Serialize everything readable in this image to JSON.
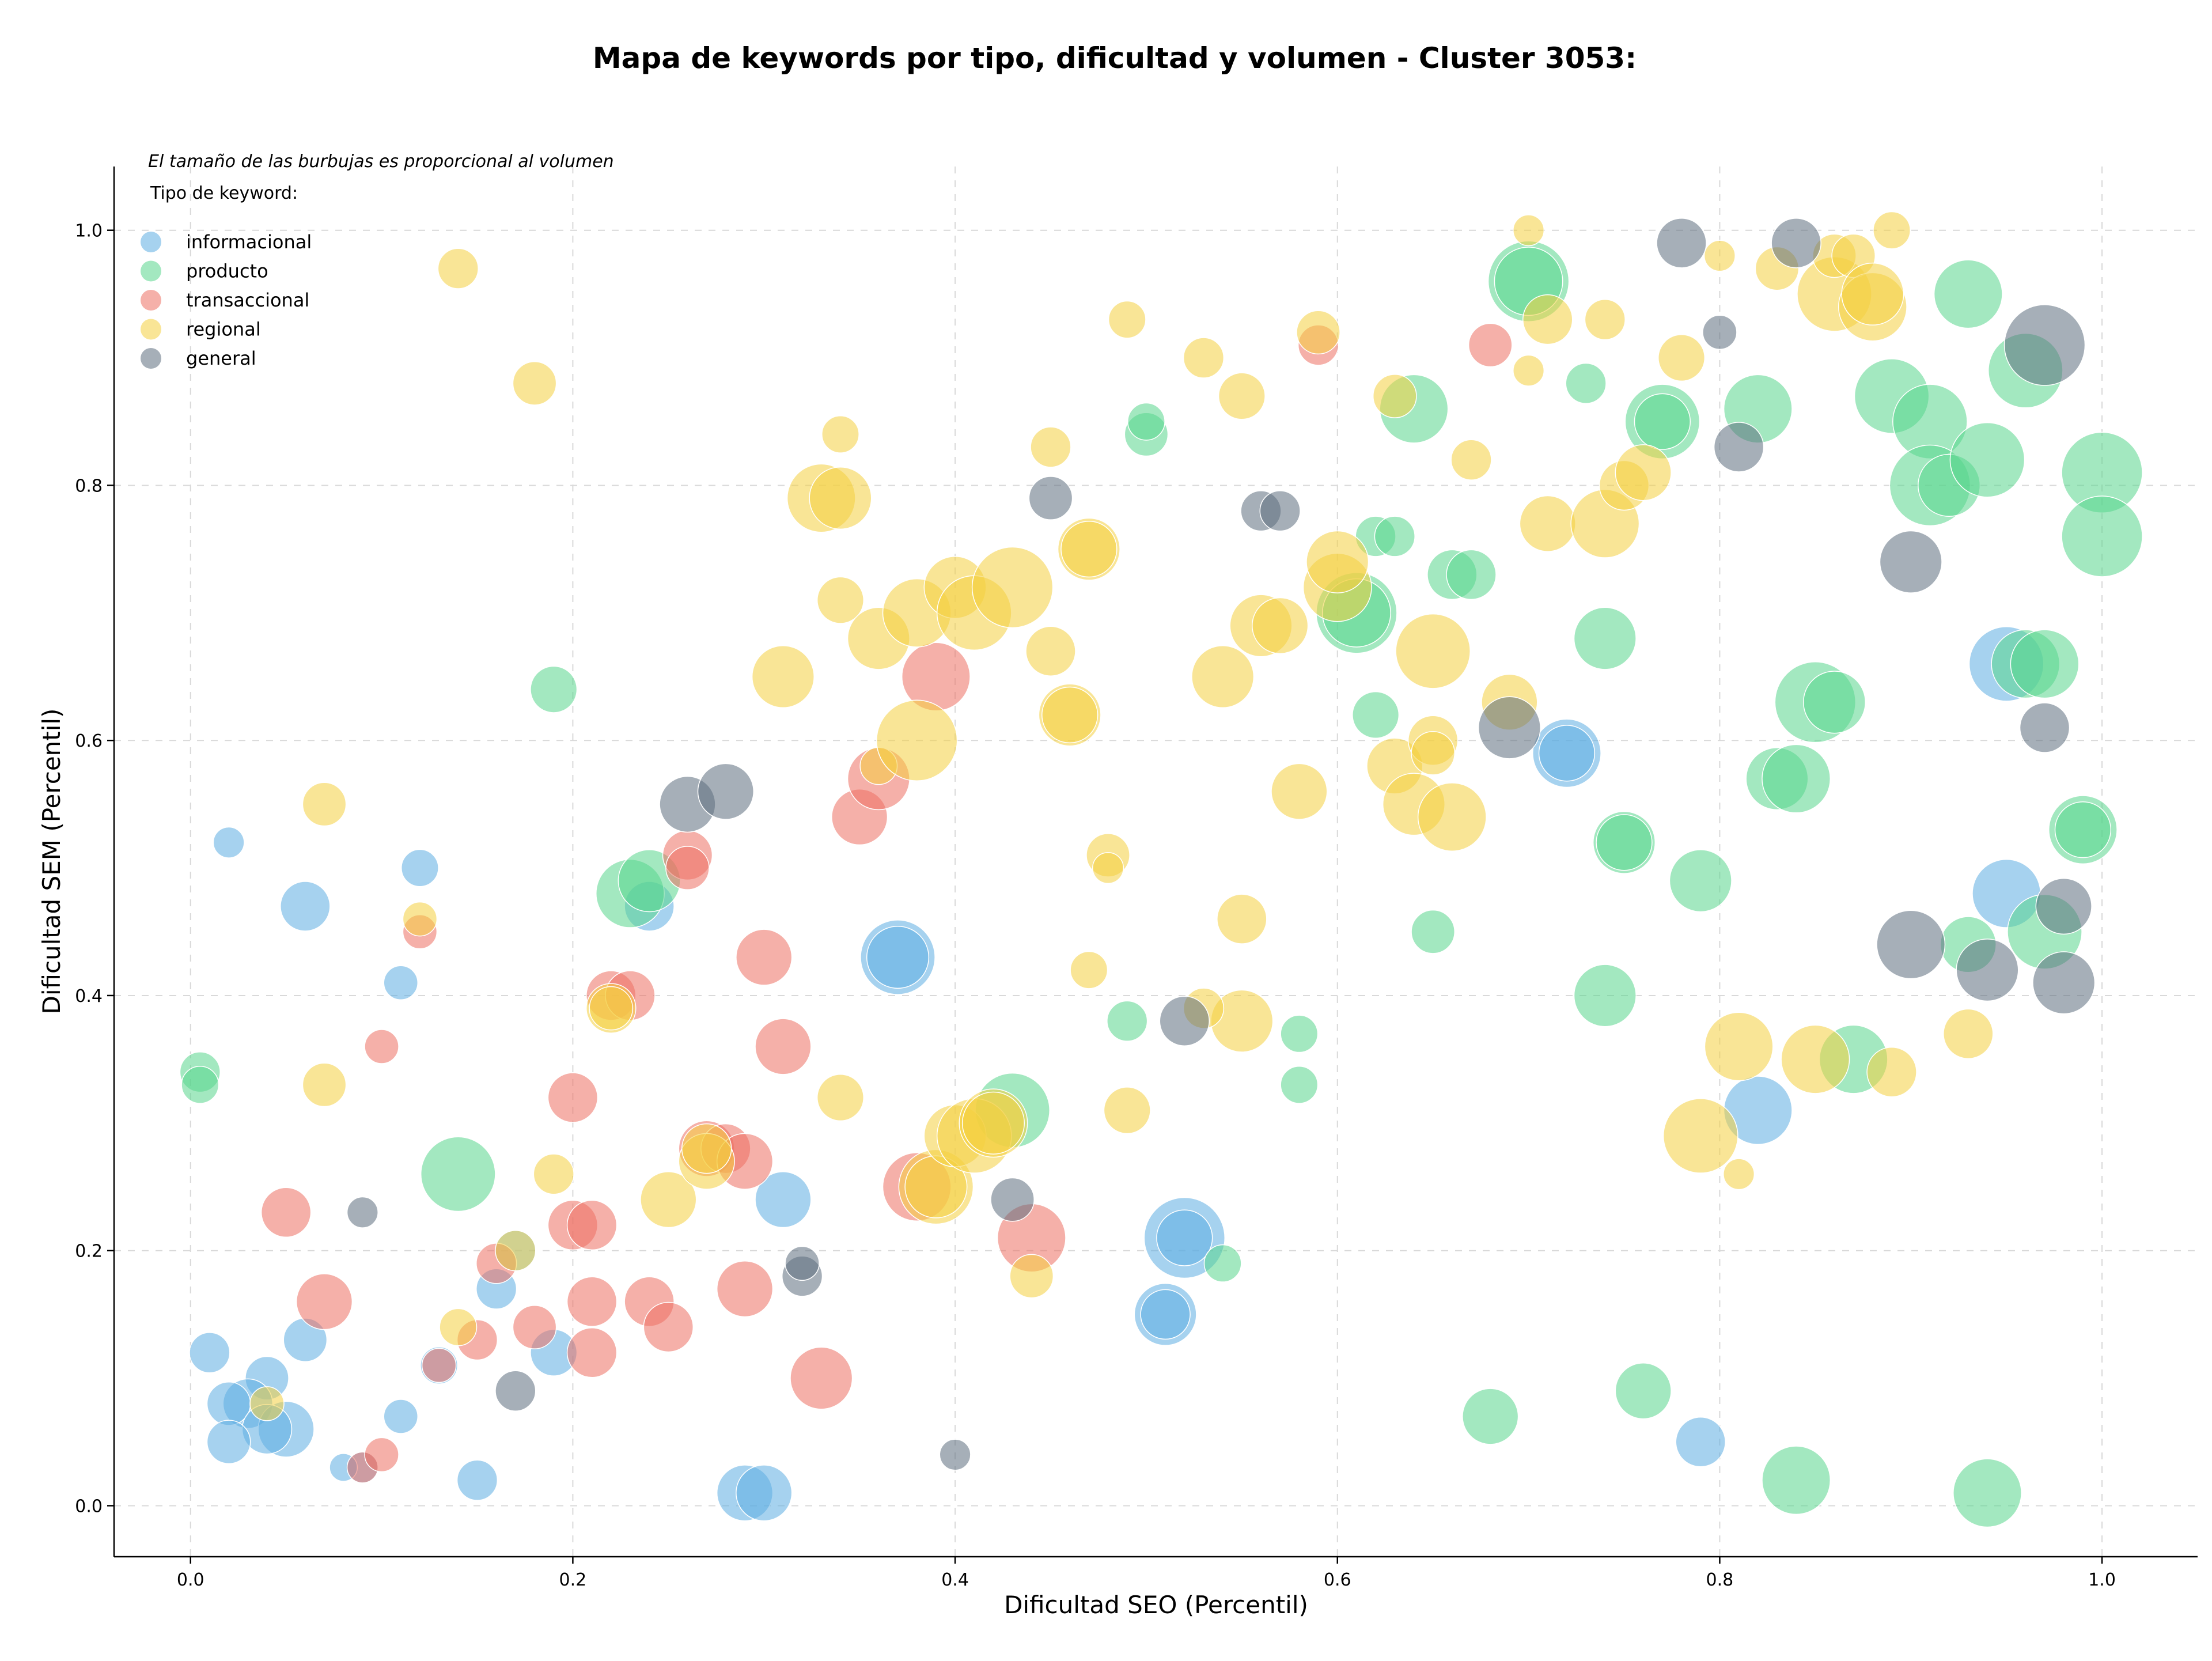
{
  "chart_data": {
    "type": "scatter",
    "title": "Mapa de keywords por tipo, dificultad y volumen - Cluster 3053:",
    "xlabel": "Dificultad SEO (Percentil)",
    "ylabel": "Dificultad SEM (Percentil)",
    "xlim": [
      -0.04,
      1.05
    ],
    "ylim": [
      -0.04,
      1.05
    ],
    "x_ticks": [
      0.0,
      0.2,
      0.4,
      0.6,
      0.8,
      1.0
    ],
    "y_ticks": [
      0.0,
      0.2,
      0.4,
      0.6,
      0.8,
      1.0
    ],
    "x_tick_labels": [
      "0.0",
      "0.2",
      "0.4",
      "0.6",
      "0.8",
      "1.0"
    ],
    "y_tick_labels": [
      "0.0",
      "0.2",
      "0.4",
      "0.6",
      "0.8",
      "1.0"
    ],
    "grid": true,
    "annotation": "El tamaño de las burbujas es proporcional al volumen",
    "legend": {
      "title": "Tipo de keyword:",
      "position": "top-left"
    },
    "series": [
      {
        "name": "informacional",
        "color": "#5DADE2",
        "points": [
          [
            0.02,
            0.52,
            2
          ],
          [
            0.06,
            0.47,
            5
          ],
          [
            0.12,
            0.5,
            3
          ],
          [
            0.11,
            0.41,
            2.5
          ],
          [
            0.24,
            0.47,
            5
          ],
          [
            0.01,
            0.12,
            3.5
          ],
          [
            0.04,
            0.1,
            4
          ],
          [
            0.03,
            0.08,
            5
          ],
          [
            0.02,
            0.08,
            4
          ],
          [
            0.06,
            0.13,
            4
          ],
          [
            0.05,
            0.06,
            6
          ],
          [
            0.04,
            0.06,
            5
          ],
          [
            0.02,
            0.05,
            4
          ],
          [
            0.11,
            0.07,
            2.5
          ],
          [
            0.09,
            0.03,
            2
          ],
          [
            0.08,
            0.03,
            1.5
          ],
          [
            0.13,
            0.11,
            3
          ],
          [
            0.15,
            0.02,
            3.5
          ],
          [
            0.16,
            0.17,
            3.5
          ],
          [
            0.17,
            0.2,
            3.5
          ],
          [
            0.19,
            0.12,
            4.5
          ],
          [
            0.29,
            0.01,
            6
          ],
          [
            0.3,
            0.01,
            6
          ],
          [
            0.31,
            0.24,
            6
          ],
          [
            0.37,
            0.43,
            9
          ],
          [
            0.37,
            0.43,
            7
          ],
          [
            0.51,
            0.15,
            7
          ],
          [
            0.51,
            0.15,
            5
          ],
          [
            0.52,
            0.21,
            10
          ],
          [
            0.52,
            0.21,
            6
          ],
          [
            0.72,
            0.59,
            8
          ],
          [
            0.72,
            0.59,
            6
          ],
          [
            0.79,
            0.05,
            5
          ],
          [
            0.82,
            0.31,
            8
          ],
          [
            0.95,
            0.66,
            9
          ],
          [
            0.95,
            0.48,
            8
          ]
        ]
      },
      {
        "name": "producto",
        "color": "#58D68D",
        "points": [
          [
            0.005,
            0.34,
            3.5
          ],
          [
            0.005,
            0.33,
            3
          ],
          [
            0.19,
            0.64,
            4.5
          ],
          [
            0.14,
            0.26,
            9
          ],
          [
            0.23,
            0.48,
            8
          ],
          [
            0.24,
            0.49,
            7
          ],
          [
            0.43,
            0.31,
            9
          ],
          [
            0.49,
            0.38,
            3.5
          ],
          [
            0.5,
            0.84,
            4
          ],
          [
            0.5,
            0.85,
            3
          ],
          [
            0.54,
            0.19,
            3
          ],
          [
            0.58,
            0.33,
            3
          ],
          [
            0.58,
            0.37,
            3
          ],
          [
            0.61,
            0.7,
            10
          ],
          [
            0.61,
            0.7,
            8
          ],
          [
            0.62,
            0.76,
            3.5
          ],
          [
            0.63,
            0.76,
            3.5
          ],
          [
            0.62,
            0.62,
            4.5
          ],
          [
            0.64,
            0.86,
            8
          ],
          [
            0.66,
            0.73,
            5
          ],
          [
            0.67,
            0.73,
            5
          ],
          [
            0.65,
            0.45,
            4
          ],
          [
            0.68,
            0.07,
            6
          ],
          [
            0.7,
            0.96,
            10
          ],
          [
            0.7,
            0.96,
            8
          ],
          [
            0.73,
            0.88,
            3.5
          ],
          [
            0.74,
            0.68,
            7
          ],
          [
            0.74,
            0.4,
            7
          ],
          [
            0.75,
            0.52,
            7
          ],
          [
            0.75,
            0.52,
            6
          ],
          [
            0.77,
            0.85,
            9
          ],
          [
            0.77,
            0.85,
            6
          ],
          [
            0.76,
            0.09,
            6
          ],
          [
            0.79,
            0.49,
            7
          ],
          [
            0.82,
            0.86,
            8
          ],
          [
            0.83,
            0.57,
            7
          ],
          [
            0.84,
            0.57,
            8
          ],
          [
            0.85,
            0.63,
            10
          ],
          [
            0.86,
            0.63,
            7
          ],
          [
            0.84,
            0.02,
            8
          ],
          [
            0.87,
            0.35,
            8
          ],
          [
            0.89,
            0.87,
            9
          ],
          [
            0.91,
            0.85,
            9
          ],
          [
            0.91,
            0.8,
            10
          ],
          [
            0.92,
            0.8,
            7
          ],
          [
            0.93,
            0.95,
            8
          ],
          [
            0.94,
            0.82,
            9
          ],
          [
            0.96,
            0.66,
            8
          ],
          [
            0.96,
            0.89,
            9
          ],
          [
            0.97,
            0.66,
            8
          ],
          [
            0.97,
            0.45,
            9
          ],
          [
            0.93,
            0.44,
            6
          ],
          [
            0.99,
            0.53,
            8
          ],
          [
            0.99,
            0.53,
            6
          ],
          [
            1.0,
            0.81,
            10
          ],
          [
            1.0,
            0.76,
            10
          ],
          [
            0.94,
            0.01,
            8
          ]
        ]
      },
      {
        "name": "transaccional",
        "color": "#EC7063",
        "points": [
          [
            0.05,
            0.23,
            5
          ],
          [
            0.07,
            0.16,
            6
          ],
          [
            0.09,
            0.03,
            2
          ],
          [
            0.1,
            0.04,
            2.5
          ],
          [
            0.1,
            0.36,
            2.5
          ],
          [
            0.12,
            0.45,
            2.5
          ],
          [
            0.13,
            0.11,
            2.5
          ],
          [
            0.15,
            0.13,
            3.5
          ],
          [
            0.16,
            0.19,
            3.5
          ],
          [
            0.18,
            0.14,
            4
          ],
          [
            0.2,
            0.22,
            5
          ],
          [
            0.2,
            0.32,
            5
          ],
          [
            0.21,
            0.16,
            5
          ],
          [
            0.21,
            0.12,
            5
          ],
          [
            0.21,
            0.22,
            5
          ],
          [
            0.22,
            0.4,
            5
          ],
          [
            0.23,
            0.4,
            5
          ],
          [
            0.24,
            0.16,
            5
          ],
          [
            0.25,
            0.14,
            5
          ],
          [
            0.26,
            0.51,
            5
          ],
          [
            0.26,
            0.5,
            4
          ],
          [
            0.27,
            0.28,
            6
          ],
          [
            0.28,
            0.28,
            5
          ],
          [
            0.29,
            0.27,
            6
          ],
          [
            0.29,
            0.17,
            6
          ],
          [
            0.3,
            0.43,
            6
          ],
          [
            0.31,
            0.36,
            6
          ],
          [
            0.33,
            0.1,
            7
          ],
          [
            0.35,
            0.54,
            6
          ],
          [
            0.36,
            0.57,
            7
          ],
          [
            0.38,
            0.25,
            8
          ],
          [
            0.39,
            0.65,
            8
          ],
          [
            0.44,
            0.21,
            8
          ],
          [
            0.59,
            0.91,
            3.5
          ],
          [
            0.68,
            0.91,
            4
          ]
        ]
      },
      {
        "name": "regional",
        "color": "#F4D03F",
        "points": [
          [
            0.14,
            0.97,
            3.5
          ],
          [
            0.18,
            0.88,
            4
          ],
          [
            0.07,
            0.55,
            4
          ],
          [
            0.07,
            0.33,
            4
          ],
          [
            0.12,
            0.46,
            2.5
          ],
          [
            0.14,
            0.14,
            3
          ],
          [
            0.17,
            0.2,
            3.5
          ],
          [
            0.04,
            0.08,
            2.5
          ],
          [
            0.19,
            0.26,
            3.5
          ],
          [
            0.22,
            0.39,
            5
          ],
          [
            0.22,
            0.39,
            4
          ],
          [
            0.25,
            0.24,
            6
          ],
          [
            0.27,
            0.27,
            6
          ],
          [
            0.27,
            0.28,
            5
          ],
          [
            0.31,
            0.65,
            7
          ],
          [
            0.33,
            0.79,
            8
          ],
          [
            0.34,
            0.79,
            7
          ],
          [
            0.34,
            0.84,
            3
          ],
          [
            0.34,
            0.71,
            4.5
          ],
          [
            0.34,
            0.32,
            4.5
          ],
          [
            0.36,
            0.68,
            7
          ],
          [
            0.36,
            0.58,
            3
          ],
          [
            0.38,
            0.6,
            10
          ],
          [
            0.38,
            0.7,
            8
          ],
          [
            0.4,
            0.72,
            7
          ],
          [
            0.39,
            0.25,
            9
          ],
          [
            0.39,
            0.25,
            7
          ],
          [
            0.4,
            0.29,
            7
          ],
          [
            0.41,
            0.29,
            9
          ],
          [
            0.41,
            0.7,
            9
          ],
          [
            0.42,
            0.3,
            8
          ],
          [
            0.42,
            0.3,
            7
          ],
          [
            0.43,
            0.72,
            10
          ],
          [
            0.44,
            0.18,
            4
          ],
          [
            0.45,
            0.67,
            5
          ],
          [
            0.45,
            0.83,
            3.5
          ],
          [
            0.46,
            0.62,
            7
          ],
          [
            0.46,
            0.62,
            6
          ],
          [
            0.47,
            0.75,
            7
          ],
          [
            0.47,
            0.75,
            6
          ],
          [
            0.47,
            0.42,
            3
          ],
          [
            0.48,
            0.51,
            4
          ],
          [
            0.48,
            0.5,
            2
          ],
          [
            0.49,
            0.31,
            4.5
          ],
          [
            0.49,
            0.93,
            3
          ],
          [
            0.53,
            0.9,
            3.5
          ],
          [
            0.54,
            0.65,
            7
          ],
          [
            0.55,
            0.87,
            4.5
          ],
          [
            0.55,
            0.46,
            5
          ],
          [
            0.55,
            0.38,
            7
          ],
          [
            0.53,
            0.39,
            3.5
          ],
          [
            0.56,
            0.69,
            7
          ],
          [
            0.57,
            0.69,
            6
          ],
          [
            0.58,
            0.56,
            6
          ],
          [
            0.59,
            0.92,
            4
          ],
          [
            0.6,
            0.72,
            8
          ],
          [
            0.6,
            0.74,
            7
          ],
          [
            0.63,
            0.87,
            4
          ],
          [
            0.63,
            0.58,
            6
          ],
          [
            0.64,
            0.55,
            7
          ],
          [
            0.65,
            0.6,
            5
          ],
          [
            0.65,
            0.59,
            4
          ],
          [
            0.65,
            0.67,
            9
          ],
          [
            0.66,
            0.54,
            8
          ],
          [
            0.67,
            0.82,
            3.5
          ],
          [
            0.69,
            0.63,
            6
          ],
          [
            0.7,
            1.0,
            2
          ],
          [
            0.7,
            0.89,
            2
          ],
          [
            0.71,
            0.93,
            5
          ],
          [
            0.71,
            0.77,
            6
          ],
          [
            0.74,
            0.77,
            8
          ],
          [
            0.74,
            0.93,
            3.5
          ],
          [
            0.75,
            0.8,
            5
          ],
          [
            0.76,
            0.81,
            6
          ],
          [
            0.78,
            0.9,
            4.5
          ],
          [
            0.8,
            0.98,
            2
          ],
          [
            0.79,
            0.29,
            9
          ],
          [
            0.81,
            0.36,
            8
          ],
          [
            0.81,
            0.26,
            2
          ],
          [
            0.83,
            0.97,
            4
          ],
          [
            0.85,
            0.35,
            8
          ],
          [
            0.86,
            0.95,
            9
          ],
          [
            0.86,
            0.98,
            4
          ],
          [
            0.87,
            0.98,
            4
          ],
          [
            0.88,
            0.94,
            8
          ],
          [
            0.88,
            0.95,
            7
          ],
          [
            0.89,
            1.0,
            3
          ],
          [
            0.89,
            0.34,
            5
          ],
          [
            0.93,
            0.37,
            5
          ]
        ]
      },
      {
        "name": "general",
        "color": "#5D6D7E",
        "points": [
          [
            0.09,
            0.23,
            2
          ],
          [
            0.17,
            0.09,
            3.5
          ],
          [
            0.26,
            0.55,
            6
          ],
          [
            0.28,
            0.56,
            6
          ],
          [
            0.32,
            0.18,
            3.5
          ],
          [
            0.32,
            0.19,
            2.5
          ],
          [
            0.4,
            0.04,
            2
          ],
          [
            0.43,
            0.24,
            4
          ],
          [
            0.45,
            0.79,
            4
          ],
          [
            0.52,
            0.38,
            5
          ],
          [
            0.56,
            0.78,
            3.5
          ],
          [
            0.57,
            0.78,
            3.5
          ],
          [
            0.69,
            0.61,
            7
          ],
          [
            0.78,
            0.99,
            5
          ],
          [
            0.8,
            0.92,
            2.5
          ],
          [
            0.81,
            0.83,
            5
          ],
          [
            0.84,
            0.99,
            5
          ],
          [
            0.9,
            0.74,
            7
          ],
          [
            0.9,
            0.44,
            8
          ],
          [
            0.94,
            0.42,
            7
          ],
          [
            0.97,
            0.91,
            10
          ],
          [
            0.97,
            0.61,
            5
          ],
          [
            0.98,
            0.47,
            6
          ],
          [
            0.98,
            0.41,
            7
          ]
        ]
      }
    ]
  }
}
